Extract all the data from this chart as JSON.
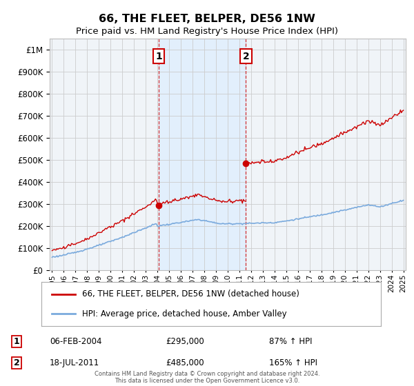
{
  "title": "66, THE FLEET, BELPER, DE56 1NW",
  "subtitle": "Price paid vs. HM Land Registry's House Price Index (HPI)",
  "footnote": "Contains HM Land Registry data © Crown copyright and database right 2024.\nThis data is licensed under the Open Government Licence v3.0.",
  "legend_line1": "66, THE FLEET, BELPER, DE56 1NW (detached house)",
  "legend_line2": "HPI: Average price, detached house, Amber Valley",
  "sale1_date": "06-FEB-2004",
  "sale1_price": "£295,000",
  "sale1_hpi": "87% ↑ HPI",
  "sale1_year": 2004.1,
  "sale1_value": 295000,
  "sale2_date": "18-JUL-2011",
  "sale2_price": "£485,000",
  "sale2_hpi": "165% ↑ HPI",
  "sale2_year": 2011.55,
  "sale2_value": 485000,
  "hpi_color": "#7aaadd",
  "price_color": "#cc0000",
  "background_color": "#ffffff",
  "plot_bg_color": "#f0f4f8",
  "grid_color": "#cccccc",
  "band_color": "#ddeeff",
  "ylim": [
    0,
    1050000
  ],
  "xlim_start": 1994.8,
  "xlim_end": 2025.2
}
